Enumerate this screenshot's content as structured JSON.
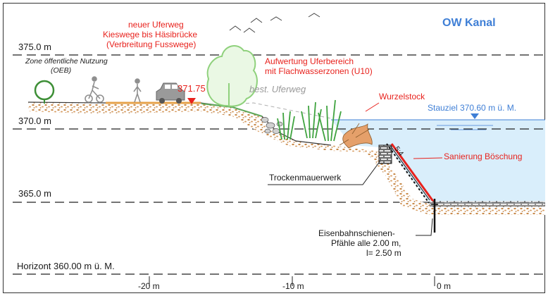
{
  "title": "OW Kanal",
  "levels": [
    {
      "label": "375.0 m"
    },
    {
      "label": "370.0 m"
    },
    {
      "label": "365.0 m"
    },
    {
      "label": "Horizont 360.00 m ü. M."
    }
  ],
  "x_ticks": [
    "-20 m",
    "-10 m",
    "0 m"
  ],
  "zone_label": [
    "Zone öffentliche Nutzung",
    "(OEB)"
  ],
  "new_path_label": [
    "neuer Uferweg",
    "Kieswege bis Häsibrücke",
    "(Verbreitung Fusswege)"
  ],
  "upgrade_label": [
    "Aufwertung Uferbereich",
    "mit Flachwasserzonen (U10)"
  ],
  "existing_path_label": "best. Uferweg",
  "elevation_marker": "371.75",
  "root_label": "Wurzelstock",
  "water_label": "Stauziel 370.60 m ü. M.",
  "slope_label": "5:4",
  "rehab_label": "Sanierung Böschung",
  "drystone_label": "Trockenmauerwerk",
  "piles_label": [
    "Eisenbahnschienen-",
    "Pfähle alle 2.00 m,",
    "l= 2.50 m"
  ],
  "colors": {
    "annotation_red": "#e8221d",
    "water_blue": "#3f7fd6",
    "water_fill": "#d9eefb",
    "tree_green": "#9bd88a",
    "soil_brown": "#c98a4a",
    "gravel_grey": "#b9b9b9"
  },
  "icons": [
    "tree-icon",
    "cyclist-icon",
    "pedestrian-icon",
    "car-icon",
    "bird-icon",
    "reed-icon",
    "water-level-marker-icon"
  ]
}
